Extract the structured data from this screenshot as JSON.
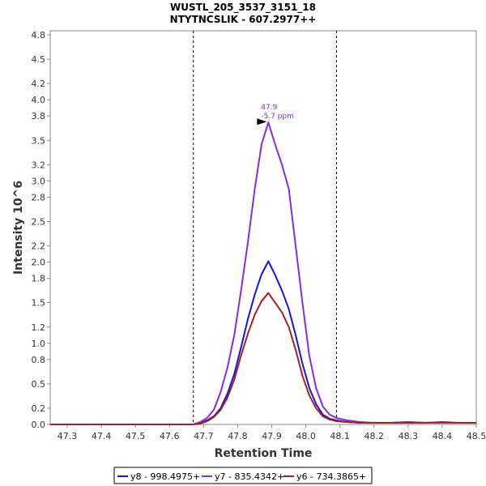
{
  "chart_data": {
    "type": "line",
    "title": "WUSTL_205_3537_3151_18",
    "subtitle": "NTYTNCSLIK - 607.2977++",
    "xlabel": "Retention Time",
    "ylabel": "Intensity 10^6",
    "xlim": [
      47.25,
      48.5
    ],
    "ylim": [
      0,
      4.85
    ],
    "xticks": [
      "47.3",
      "47.4",
      "47.5",
      "47.6",
      "47.7",
      "47.8",
      "47.9",
      "48.0",
      "48.1",
      "48.2",
      "48.3",
      "48.4",
      "48.5"
    ],
    "yticks": [
      "0.0",
      "0.2",
      "0.5",
      "0.8",
      "1.0",
      "1.2",
      "1.5",
      "1.8",
      "2.0",
      "2.2",
      "2.5",
      "2.8",
      "3.0",
      "3.2",
      "3.5",
      "3.8",
      "4.0",
      "4.2",
      "4.5",
      "4.8"
    ],
    "grid": false,
    "legend_position": "bottom",
    "boundaries": [
      47.67,
      48.09
    ],
    "annotation": {
      "x": 47.89,
      "y": 3.72,
      "line1": "47.9",
      "line2": "-5.7 ppm",
      "color": "#8a2be2"
    },
    "series": [
      {
        "name": "y8 - 998.4975+",
        "color": "#1414e0",
        "x": [
          47.25,
          47.67,
          47.69,
          47.71,
          47.73,
          47.75,
          47.77,
          47.79,
          47.81,
          47.83,
          47.85,
          47.87,
          47.89,
          47.91,
          47.93,
          47.95,
          47.97,
          47.99,
          48.01,
          48.03,
          48.05,
          48.07,
          48.09,
          48.12,
          48.16,
          48.2,
          48.25,
          48.3,
          48.35,
          48.4,
          48.45,
          48.5
        ],
        "y": [
          0.0,
          0.0,
          0.02,
          0.05,
          0.1,
          0.2,
          0.38,
          0.62,
          0.95,
          1.3,
          1.6,
          1.85,
          2.01,
          1.84,
          1.65,
          1.42,
          1.1,
          0.75,
          0.45,
          0.25,
          0.12,
          0.07,
          0.05,
          0.03,
          0.02,
          0.02,
          0.02,
          0.03,
          0.02,
          0.02,
          0.02,
          0.02
        ]
      },
      {
        "name": "y7 - 835.4342+",
        "color": "#8a2be2",
        "x": [
          47.25,
          47.67,
          47.69,
          47.71,
          47.73,
          47.75,
          47.77,
          47.79,
          47.81,
          47.83,
          47.85,
          47.87,
          47.89,
          47.91,
          47.93,
          47.95,
          47.97,
          47.99,
          48.01,
          48.03,
          48.05,
          48.07,
          48.09,
          48.12,
          48.16,
          48.2,
          48.25,
          48.3,
          48.35,
          48.4,
          48.45,
          48.5
        ],
        "y": [
          0.0,
          0.0,
          0.03,
          0.08,
          0.18,
          0.4,
          0.7,
          1.1,
          1.65,
          2.25,
          2.9,
          3.45,
          3.72,
          3.45,
          3.2,
          2.9,
          2.2,
          1.5,
          0.85,
          0.45,
          0.22,
          0.12,
          0.08,
          0.05,
          0.03,
          0.02,
          0.02,
          0.03,
          0.02,
          0.02,
          0.02,
          0.02
        ]
      },
      {
        "name": "y6 - 734.3865+",
        "color": "#a52020",
        "x": [
          47.25,
          47.67,
          47.69,
          47.71,
          47.73,
          47.75,
          47.77,
          47.79,
          47.81,
          47.83,
          47.85,
          47.87,
          47.89,
          47.91,
          47.93,
          47.95,
          47.97,
          47.99,
          48.01,
          48.03,
          48.05,
          48.07,
          48.09,
          48.12,
          48.16,
          48.2,
          48.25,
          48.3,
          48.35,
          48.4,
          48.45,
          48.5
        ],
        "y": [
          0.0,
          0.0,
          0.01,
          0.04,
          0.09,
          0.18,
          0.33,
          0.55,
          0.85,
          1.12,
          1.35,
          1.52,
          1.62,
          1.5,
          1.38,
          1.2,
          0.92,
          0.6,
          0.36,
          0.2,
          0.1,
          0.06,
          0.04,
          0.03,
          0.02,
          0.02,
          0.02,
          0.02,
          0.02,
          0.03,
          0.02,
          0.02
        ]
      }
    ]
  }
}
